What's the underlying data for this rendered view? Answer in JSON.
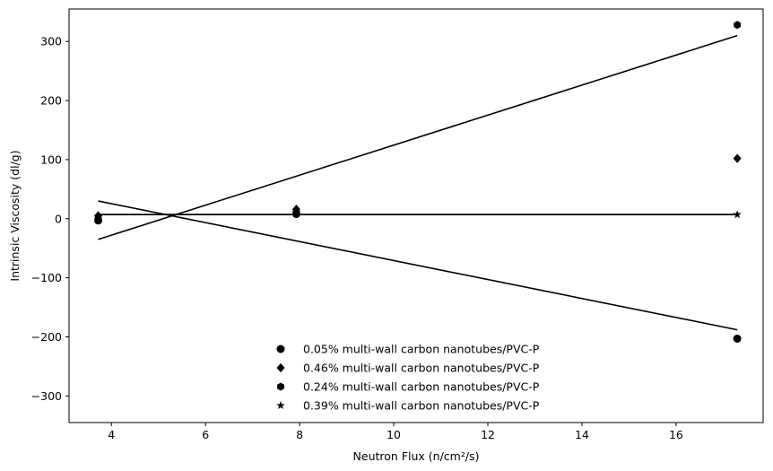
{
  "chart_data": {
    "type": "scatter",
    "xlabel": "Neutron Flux (n/cm²/s)",
    "ylabel": "Intrinsic Viscosity (dl/g)",
    "xlim": [
      3.1,
      17.85
    ],
    "ylim": [
      -345,
      355
    ],
    "xticks": [
      4,
      6,
      8,
      10,
      12,
      14,
      16
    ],
    "yticks": [
      -300,
      -200,
      -100,
      0,
      100,
      200,
      300
    ],
    "xtick_labels": [
      "4",
      "6",
      "8",
      "10",
      "12",
      "14",
      "16"
    ],
    "ytick_labels": [
      "−300",
      "−200",
      "−100",
      "0",
      "100",
      "200",
      "300"
    ],
    "grid": false,
    "legend_position": "bottom-center",
    "color": "#000000",
    "series": [
      {
        "name": "0.05% multi-wall carbon nanotubes/PVC-P",
        "marker": "circle",
        "points": [
          [
            3.72,
            -3
          ],
          [
            7.93,
            8
          ],
          [
            17.3,
            -203
          ]
        ],
        "fit": [
          [
            3.72,
            30
          ],
          [
            17.3,
            -188
          ]
        ]
      },
      {
        "name": "0.46% multi-wall carbon nanotubes/PVC-P",
        "marker": "diamond",
        "points": [
          [
            3.72,
            5
          ],
          [
            7.93,
            16
          ],
          [
            17.3,
            102
          ]
        ],
        "fit": [
          [
            3.72,
            7
          ],
          [
            17.3,
            7
          ]
        ]
      },
      {
        "name": "0.24% multi-wall carbon nanotubes/PVC-P",
        "marker": "hexagon",
        "points": [
          [
            3.72,
            2
          ],
          [
            7.93,
            10
          ],
          [
            17.3,
            328
          ]
        ],
        "fit": [
          [
            3.72,
            -35
          ],
          [
            17.3,
            310
          ]
        ]
      },
      {
        "name": "0.39% multi-wall carbon nanotubes/PVC-P",
        "marker": "star",
        "points": [
          [
            3.72,
            4
          ],
          [
            7.93,
            10
          ],
          [
            17.3,
            7
          ]
        ],
        "fit": [
          [
            3.72,
            7
          ],
          [
            17.3,
            7
          ]
        ]
      }
    ]
  }
}
